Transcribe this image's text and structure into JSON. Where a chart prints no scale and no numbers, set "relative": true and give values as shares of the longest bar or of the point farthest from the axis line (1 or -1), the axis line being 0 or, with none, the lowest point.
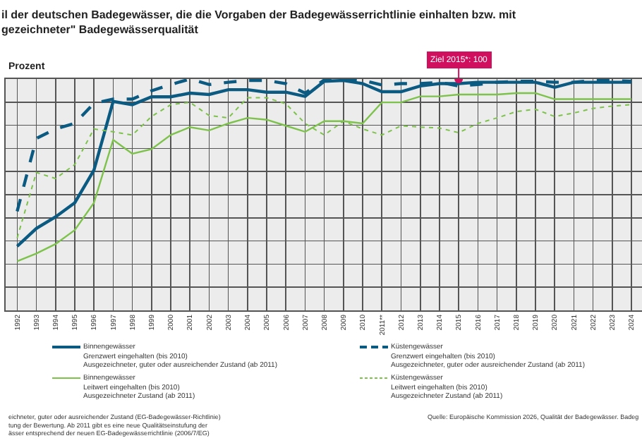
{
  "chart_data": {
    "type": "line",
    "title": "il der deutschen Badegewässer, die die Vorgaben der Badegewässerrichtlinie einhalten bzw. mit\ngezeichneter\" Badegewässerqualität",
    "ylabel": "Prozent",
    "relative": true,
    "grid": true,
    "legend": "bottom",
    "categories": [
      "1992",
      "1993",
      "1994",
      "1995",
      "1996",
      "1997",
      "1998",
      "1999",
      "2000",
      "2001",
      "2002",
      "2003",
      "2004",
      "2005",
      "2006",
      "2007",
      "2008",
      "2009",
      "2010",
      "2011**",
      "2012",
      "2013",
      "2014",
      "2015",
      "2016",
      "2017",
      "2018",
      "2019",
      "2020",
      "2021",
      "2022",
      "2023",
      "2024"
    ],
    "series": [
      {
        "name": "Binnengewässer\nGrenzwert eingehalten (bis 2010)\nAusgezeichneter, guter oder ausreichender Zustand (ab 2011)",
        "color": "#0b5a82",
        "line_style": "solid",
        "values": [
          0.277,
          0.354,
          0.404,
          0.465,
          0.606,
          0.903,
          0.889,
          0.923,
          0.923,
          0.939,
          0.933,
          0.954,
          0.954,
          0.943,
          0.943,
          0.925,
          0.99,
          0.994,
          0.98,
          0.945,
          0.945,
          0.97,
          0.98,
          0.98,
          0.986,
          0.986,
          0.986,
          0.986,
          0.964,
          0.986,
          0.986,
          0.986,
          0.986
        ]
      },
      {
        "name": "Küstengewässer\nGrenzwert eingehalten (bis 2010)\nAusgezeichneter, guter oder ausreichender Zustand (ab 2011)",
        "color": "#0b5a82",
        "line_style": "dashed",
        "values": [
          0.428,
          0.743,
          0.784,
          0.808,
          0.895,
          0.913,
          0.913,
          0.949,
          0.976,
          1.0,
          0.976,
          0.986,
          0.994,
          0.994,
          0.98,
          0.939,
          0.996,
          1.0,
          0.994,
          0.974,
          0.98,
          0.98,
          0.986,
          0.97,
          0.976,
          0.986,
          0.99,
          0.99,
          0.986,
          0.986,
          0.994,
          0.994,
          0.99
        ]
      },
      {
        "name": "Binnengewässer\nLeitwert eingehalten (bis 2010)\nAusgezeichneter Zustand (ab 2011)",
        "color": "#7dc24b",
        "line_style": "solid",
        "values": [
          0.212,
          0.246,
          0.287,
          0.347,
          0.465,
          0.737,
          0.677,
          0.697,
          0.758,
          0.792,
          0.778,
          0.808,
          0.832,
          0.824,
          0.798,
          0.772,
          0.818,
          0.818,
          0.808,
          0.899,
          0.899,
          0.925,
          0.925,
          0.933,
          0.933,
          0.933,
          0.939,
          0.939,
          0.913,
          0.913,
          0.913,
          0.913,
          0.913
        ]
      },
      {
        "name": "Küstengewässer\nLeitwert eingehalten (bis 2010)\nAusgezeichneter Zustand (ab 2011)",
        "color": "#7dc24b",
        "line_style": "dotted",
        "values": [
          0.313,
          0.596,
          0.57,
          0.63,
          0.784,
          0.772,
          0.758,
          0.838,
          0.889,
          0.899,
          0.842,
          0.832,
          0.919,
          0.919,
          0.893,
          0.808,
          0.758,
          0.818,
          0.784,
          0.758,
          0.798,
          0.792,
          0.788,
          0.768,
          0.808,
          0.832,
          0.859,
          0.869,
          0.838,
          0.853,
          0.873,
          0.883,
          0.889
        ]
      }
    ],
    "annotations": [
      {
        "text": "Ziel 2015*: 100",
        "x": "2015",
        "y": 1.0
      },
      "eichneter, guter oder ausreichender Zustand (EG-Badegewässer-Richtlinie)\ntung der Bewertung. Ab 2011 gibt es eine neue Qualitätseinstufung der\nässer entsprechend der neuen EG-Badegewässerrichtlinie (2006/7/EG)",
      "Quelle: Europäische Kommission 2026, Qualität der Badegewässer. Badeg"
    ]
  }
}
